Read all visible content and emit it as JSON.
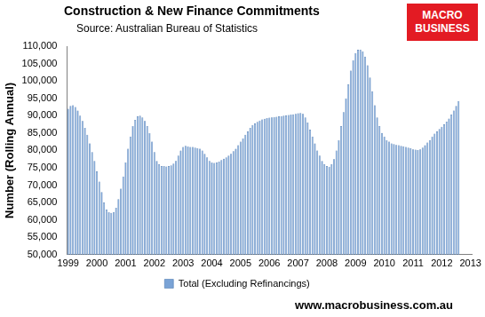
{
  "chart_data": {
    "type": "bar",
    "title": "Construction & New Finance Commitments",
    "subtitle": "Source: Australian  Bureau of Statistics",
    "y_label": "Number (Rolling Annual)",
    "annotations": [
      "MACRO",
      "BUSINESS",
      "www.macrobusiness.com.au"
    ],
    "categories": [
      "1999",
      null,
      null,
      null,
      null,
      null,
      null,
      null,
      null,
      null,
      null,
      null,
      "2000",
      null,
      null,
      null,
      null,
      null,
      null,
      null,
      null,
      null,
      null,
      null,
      "2001",
      null,
      null,
      null,
      null,
      null,
      null,
      null,
      null,
      null,
      null,
      null,
      "2002",
      null,
      null,
      null,
      null,
      null,
      null,
      null,
      null,
      null,
      null,
      null,
      "2003",
      null,
      null,
      null,
      null,
      null,
      null,
      null,
      null,
      null,
      null,
      null,
      "2004",
      null,
      null,
      null,
      null,
      null,
      null,
      null,
      null,
      null,
      null,
      null,
      "2005",
      null,
      null,
      null,
      null,
      null,
      null,
      null,
      null,
      null,
      null,
      null,
      "2006",
      null,
      null,
      null,
      null,
      null,
      null,
      null,
      null,
      null,
      null,
      null,
      "2007",
      null,
      null,
      null,
      null,
      null,
      null,
      null,
      null,
      null,
      null,
      null,
      "2008",
      null,
      null,
      null,
      null,
      null,
      null,
      null,
      null,
      null,
      null,
      null,
      "2009",
      null,
      null,
      null,
      null,
      null,
      null,
      null,
      null,
      null,
      null,
      null,
      "2010",
      null,
      null,
      null,
      null,
      null,
      null,
      null,
      null,
      null,
      null,
      null,
      "2011",
      null,
      null,
      null,
      null,
      null,
      null,
      null,
      null,
      null,
      null,
      null,
      "2012",
      null,
      null,
      null,
      null,
      null,
      null,
      null,
      null,
      null,
      null,
      null,
      "2013"
    ],
    "series": [
      {
        "name": "Total (Excluding Refinancings)",
        "color": "#7aa3d6",
        "values": [
          92000,
          92800,
          93000,
          92500,
          91500,
          90000,
          88500,
          86500,
          84500,
          82000,
          79500,
          77000,
          74000,
          71000,
          68000,
          65000,
          63000,
          62200,
          62000,
          62300,
          63500,
          66000,
          69000,
          72500,
          76500,
          80500,
          84000,
          87000,
          88800,
          89800,
          90000,
          89500,
          88500,
          87000,
          85000,
          82500,
          79500,
          77000,
          76000,
          75500,
          75500,
          75400,
          75500,
          75700,
          76200,
          77000,
          78500,
          80000,
          81000,
          81300,
          81200,
          81000,
          81000,
          80800,
          80700,
          80500,
          80000,
          79000,
          78000,
          77000,
          76500,
          76400,
          76500,
          76800,
          77200,
          77600,
          78000,
          78500,
          79000,
          79800,
          80500,
          81500,
          82500,
          83500,
          84500,
          85500,
          86500,
          87300,
          87800,
          88200,
          88600,
          88900,
          89100,
          89300,
          89400,
          89500,
          89600,
          89700,
          89800,
          89900,
          90000,
          90100,
          90200,
          90300,
          90400,
          90500,
          90700,
          90800,
          90500,
          89500,
          88000,
          86000,
          84000,
          82000,
          80000,
          78500,
          77000,
          76000,
          75500,
          75300,
          76000,
          77500,
          80000,
          83000,
          87000,
          91000,
          95000,
          99000,
          103000,
          106000,
          108000,
          109000,
          109000,
          108500,
          107000,
          104500,
          101000,
          97000,
          93000,
          89500,
          87000,
          85000,
          84000,
          83000,
          82500,
          82000,
          81800,
          81600,
          81500,
          81300,
          81200,
          81000,
          80800,
          80600,
          80300,
          80200,
          80100,
          80300,
          80800,
          81500,
          82300,
          83000,
          84000,
          84800,
          85500,
          86200,
          86800,
          87500,
          88300,
          89200,
          90300,
          91500,
          92800,
          94200,
          null,
          null,
          null,
          null,
          null
        ]
      }
    ],
    "ylim": [
      50000,
      110000
    ],
    "yticks": [
      {
        "value": 50000,
        "label": "50,000"
      },
      {
        "value": 55000,
        "label": "55,000"
      },
      {
        "value": 60000,
        "label": "60,000"
      },
      {
        "value": 65000,
        "label": "65,000"
      },
      {
        "value": 70000,
        "label": "70,000"
      },
      {
        "value": 75000,
        "label": "75,000"
      },
      {
        "value": 80000,
        "label": "80,000"
      },
      {
        "value": 85000,
        "label": "85,000"
      },
      {
        "value": 90000,
        "label": "90,000"
      },
      {
        "value": 95000,
        "label": "95,000"
      },
      {
        "value": 100000,
        "label": "100,000"
      },
      {
        "value": 105000,
        "label": "105,000"
      },
      {
        "value": 110000,
        "label": "110,000"
      }
    ],
    "grid": false,
    "legend": "bottom"
  }
}
